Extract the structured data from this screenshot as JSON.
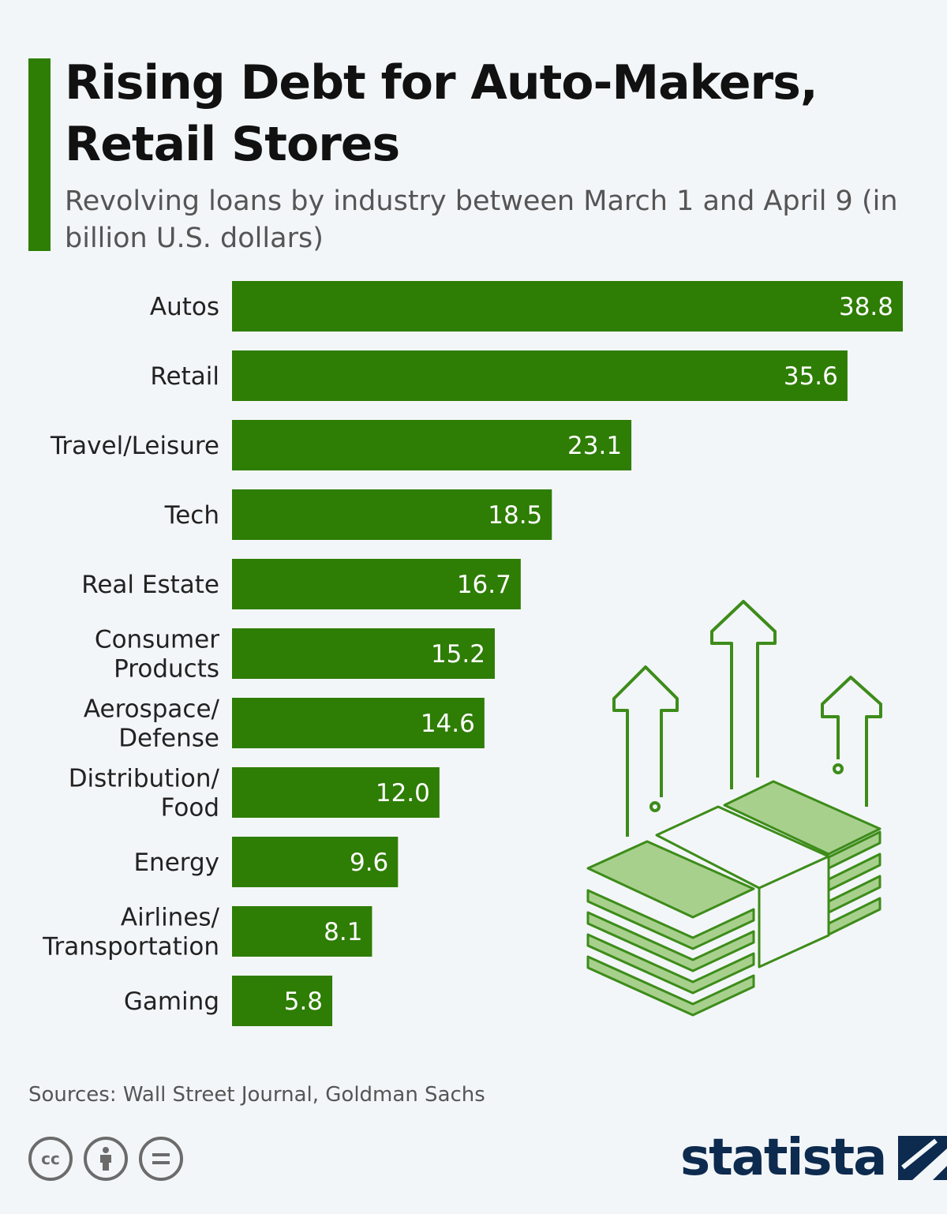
{
  "header": {
    "title": "Rising Debt for Auto-Makers, Retail Stores",
    "subtitle": "Revolving loans by industry between March 1 and April 9 (in billion U.S. dollars)"
  },
  "chart_data": {
    "type": "bar",
    "orientation": "horizontal",
    "title": "Rising Debt for Auto-Makers, Retail Stores",
    "subtitle": "Revolving loans by industry between March 1 and April 9 (in billion U.S. dollars)",
    "categories": [
      "Autos",
      "Retail",
      "Travel/Leisure",
      "Tech",
      "Real Estate",
      "Consumer Products",
      "Aerospace/ Defense",
      "Distribution/ Food",
      "Energy",
      "Airlines/ Transportation",
      "Gaming"
    ],
    "category_lines": [
      [
        "Autos"
      ],
      [
        "Retail"
      ],
      [
        "Travel/Leisure"
      ],
      [
        "Tech"
      ],
      [
        "Real Estate"
      ],
      [
        "Consumer",
        "Products"
      ],
      [
        "Aerospace/",
        "Defense"
      ],
      [
        "Distribution/",
        "Food"
      ],
      [
        "Energy"
      ],
      [
        "Airlines/",
        "Transportation"
      ],
      [
        "Gaming"
      ]
    ],
    "values": [
      38.8,
      35.6,
      23.1,
      18.5,
      16.7,
      15.2,
      14.6,
      12.0,
      9.6,
      8.1,
      5.8
    ],
    "value_labels": [
      "38.8",
      "35.6",
      "23.1",
      "18.5",
      "16.7",
      "15.2",
      "14.6",
      "12.0",
      "9.6",
      "8.1",
      "5.8"
    ],
    "xlim": [
      0,
      38.8
    ],
    "grid": false,
    "legend": "none",
    "bar_color": "#2e7d04"
  },
  "footer": {
    "source": "Sources: Wall Street Journal, Goldman Sachs",
    "brand": "statista",
    "license_icons": [
      "cc-icon",
      "attribution-icon",
      "no-derivatives-icon"
    ]
  },
  "colors": {
    "accent": "#2e7d04",
    "background": "#f3f6f8",
    "brand": "#0d2a4f"
  }
}
